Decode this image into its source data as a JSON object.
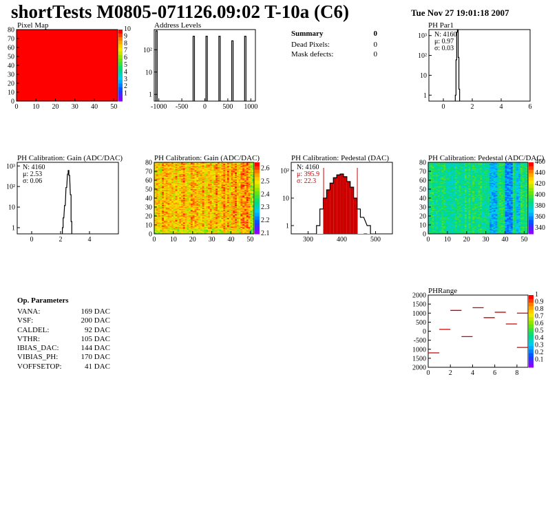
{
  "header": {
    "title": "shortTests M0805-071126.09:02 T-10a (C6)",
    "date": "Tue Nov 27 19:01:18 2007"
  },
  "summary": {
    "title": "Summary",
    "title_value": "0",
    "rows": [
      {
        "label": "Dead Pixels:",
        "value": "0"
      },
      {
        "label": "Mask defects:",
        "value": "0"
      }
    ]
  },
  "op_params": {
    "title": "Op. Parameters",
    "rows": [
      {
        "label": "VANA:",
        "value": "169 DAC"
      },
      {
        "label": "VSF:",
        "value": "200 DAC"
      },
      {
        "label": "CALDEL:",
        "value": "92 DAC"
      },
      {
        "label": "VTHR:",
        "value": "105 DAC"
      },
      {
        "label": "IBIAS_DAC:",
        "value": "144 DAC"
      },
      {
        "label": "VIBIAS_PH:",
        "value": "170 DAC"
      },
      {
        "label": "VOFFSETOP:",
        "value": "41 DAC"
      }
    ]
  },
  "colors": {
    "pixel_map_fill": "#ff0000",
    "histogram_line": "#000000",
    "fit_stats": "#cc0000",
    "pedestal_fill": "#cc0000",
    "phrange_marks": "#cc0000"
  },
  "chart_data": [
    {
      "id": "pixel_map",
      "type": "heatmap",
      "title": "Pixel Map",
      "xlim": [
        0,
        52
      ],
      "ylim": [
        0,
        80
      ],
      "xticks": [
        "0",
        "10",
        "20",
        "30",
        "40",
        "50"
      ],
      "yticks": [
        "0",
        "10",
        "20",
        "30",
        "40",
        "50",
        "60",
        "70",
        "80"
      ],
      "value": 10,
      "zlim": [
        0,
        10
      ],
      "zticks": [
        "1",
        "2",
        "3",
        "4",
        "5",
        "6",
        "7",
        "8",
        "9",
        "10"
      ]
    },
    {
      "id": "address_levels",
      "type": "bar",
      "title": "Address Levels",
      "xlim": [
        -1100,
        1100
      ],
      "ylim": [
        0.5,
        800
      ],
      "yscale": "log",
      "xticks": [
        "-1000",
        "-500",
        "0",
        "500",
        "1000"
      ],
      "yticks": [
        "1",
        "10",
        "10²"
      ],
      "peaks": [
        {
          "x": -1050,
          "y": 700
        },
        {
          "x": -240,
          "y": 400
        },
        {
          "x": 40,
          "y": 400
        },
        {
          "x": 320,
          "y": 400
        },
        {
          "x": 600,
          "y": 250
        },
        {
          "x": 880,
          "y": 400
        }
      ]
    },
    {
      "id": "ph_par1",
      "type": "bar",
      "title": "PH Par1",
      "xlim": [
        -1,
        6
      ],
      "ylim": [
        0.5,
        2000
      ],
      "yscale": "log",
      "xticks": [
        "0",
        "2",
        "4",
        "6"
      ],
      "yticks": [
        "1",
        "10",
        "10²",
        "10³"
      ],
      "stats": [
        "N: 4160",
        "μ: 0.97",
        "σ: 0.03"
      ],
      "bins": [
        {
          "x": 0.85,
          "y": 1
        },
        {
          "x": 0.9,
          "y": 60
        },
        {
          "x": 0.95,
          "y": 1500
        },
        {
          "x": 1.0,
          "y": 2000
        },
        {
          "x": 1.05,
          "y": 80
        },
        {
          "x": 1.1,
          "y": 2
        }
      ]
    },
    {
      "id": "ph_gain",
      "type": "bar",
      "title": "PH Calibration: Gain (ADC/DAC)",
      "xlim": [
        -1,
        6
      ],
      "ylim": [
        0.5,
        1500
      ],
      "yscale": "log",
      "xticks": [
        "0",
        "2",
        "4"
      ],
      "yticks": [
        "1",
        "10",
        "10²",
        "10³"
      ],
      "stats": [
        "N: 4160",
        "μ: 2.53",
        "σ: 0.06"
      ],
      "bins": [
        {
          "x": 2.15,
          "y": 1
        },
        {
          "x": 2.2,
          "y": 3
        },
        {
          "x": 2.3,
          "y": 12
        },
        {
          "x": 2.4,
          "y": 90
        },
        {
          "x": 2.5,
          "y": 400
        },
        {
          "x": 2.55,
          "y": 600
        },
        {
          "x": 2.6,
          "y": 350
        },
        {
          "x": 2.7,
          "y": 40
        },
        {
          "x": 2.75,
          "y": 2
        }
      ]
    },
    {
      "id": "ph_gain_map",
      "type": "heatmap",
      "title": "PH Calibration: Gain (ADC/DAC)",
      "xlim": [
        0,
        52
      ],
      "ylim": [
        0,
        80
      ],
      "xticks": [
        "0",
        "10",
        "20",
        "30",
        "40",
        "50"
      ],
      "yticks": [
        "0",
        "10",
        "20",
        "30",
        "40",
        "50",
        "60",
        "70",
        "80"
      ],
      "zlim": [
        2.1,
        2.65
      ],
      "zticks": [
        "2.1",
        "2.2",
        "2.3",
        "2.4",
        "2.5",
        "2.6"
      ]
    },
    {
      "id": "ph_pedestal",
      "type": "bar",
      "title": "PH Calibration: Pedestal (DAC)",
      "xlim": [
        250,
        550
      ],
      "ylim": [
        0.5,
        200
      ],
      "yscale": "log",
      "xticks": [
        "300",
        "400",
        "500"
      ],
      "yticks": [
        "1",
        "10",
        "10²"
      ],
      "stats": [
        "N: 4160",
        "μ: 395.9",
        "σ: 22.3"
      ],
      "cut_lines": [
        346,
        446
      ],
      "bins": [
        {
          "x": 330,
          "y": 1
        },
        {
          "x": 340,
          "y": 4
        },
        {
          "x": 350,
          "y": 10
        },
        {
          "x": 360,
          "y": 20
        },
        {
          "x": 370,
          "y": 35
        },
        {
          "x": 380,
          "y": 55
        },
        {
          "x": 390,
          "y": 70
        },
        {
          "x": 400,
          "y": 75
        },
        {
          "x": 410,
          "y": 60
        },
        {
          "x": 420,
          "y": 40
        },
        {
          "x": 430,
          "y": 25
        },
        {
          "x": 440,
          "y": 10
        },
        {
          "x": 450,
          "y": 4
        },
        {
          "x": 460,
          "y": 2
        },
        {
          "x": 480,
          "y": 1
        }
      ]
    },
    {
      "id": "ph_pedestal_map",
      "type": "heatmap",
      "title": "PH Calibration: Pedestal (ADC/DAC)",
      "xlim": [
        0,
        52
      ],
      "ylim": [
        0,
        80
      ],
      "xticks": [
        "0",
        "10",
        "20",
        "30",
        "40",
        "50"
      ],
      "yticks": [
        "0",
        "10",
        "20",
        "30",
        "40",
        "50",
        "60",
        "70",
        "80"
      ],
      "zlim": [
        330,
        460
      ],
      "zticks": [
        "340",
        "360",
        "380",
        "400",
        "420",
        "440",
        "460"
      ]
    },
    {
      "id": "ph_range",
      "type": "scatter",
      "title": "PHRange",
      "xlim": [
        0,
        9
      ],
      "ylim": [
        -2000,
        2000
      ],
      "xticks": [
        "0",
        "2",
        "4",
        "6",
        "8"
      ],
      "yticks": [
        "2000",
        "1500",
        "1000",
        "500",
        "0",
        "-500",
        "1000",
        "1500",
        "2000"
      ],
      "zticks": [
        "0.1",
        "0.2",
        "0.3",
        "0.4",
        "0.5",
        "0.6",
        "0.7",
        "0.8",
        "0.9",
        "1"
      ],
      "segments": [
        {
          "x": 0.5,
          "y": -1200
        },
        {
          "x": 1.5,
          "y": 100
        },
        {
          "x": 2.5,
          "y": 1150
        },
        {
          "x": 3.5,
          "y": -300
        },
        {
          "x": 4.5,
          "y": 1300
        },
        {
          "x": 5.5,
          "y": 750
        },
        {
          "x": 6.5,
          "y": 1050
        },
        {
          "x": 7.5,
          "y": 400
        },
        {
          "x": 8.5,
          "y": 1000
        },
        {
          "x": 8.5,
          "y": -900
        }
      ]
    }
  ]
}
